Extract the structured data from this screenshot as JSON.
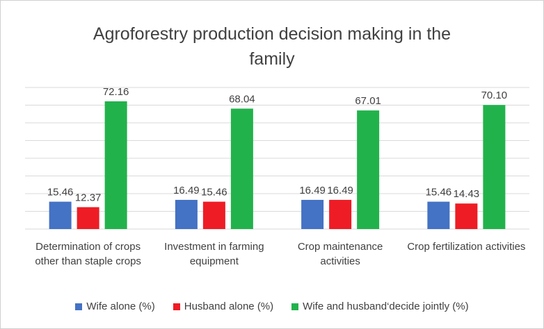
{
  "chart_data": {
    "type": "bar",
    "title": "Agroforestry production decision making in the family",
    "categories": [
      "Determination of crops other than staple crops",
      "Investment in farming equipment",
      "Crop maintenance activities",
      "Crop fertilization activities"
    ],
    "series": [
      {
        "name": "Wife alone (%)",
        "color": "#4472c4",
        "values": [
          15.46,
          16.49,
          16.49,
          15.46
        ],
        "value_labels": [
          "15.46",
          "16.49",
          "16.49",
          "15.46"
        ]
      },
      {
        "name": "Husband alone (%)",
        "color": "#ee1c25",
        "values": [
          12.37,
          15.46,
          16.49,
          14.43
        ],
        "value_labels": [
          "12.37",
          "15.46",
          "16.49",
          "14.43"
        ]
      },
      {
        "name": "Wife and husband‘decide jointly (%)",
        "color": "#22b24c",
        "values": [
          72.16,
          68.04,
          67.01,
          70.1
        ],
        "value_labels": [
          "72.16",
          "68.04",
          "67.01",
          "70.10"
        ]
      }
    ],
    "ylim": [
      0,
      80
    ],
    "yticks": [
      0,
      10,
      20,
      30,
      40,
      50,
      60,
      70,
      80
    ],
    "grid": true,
    "legend": "bottom"
  }
}
